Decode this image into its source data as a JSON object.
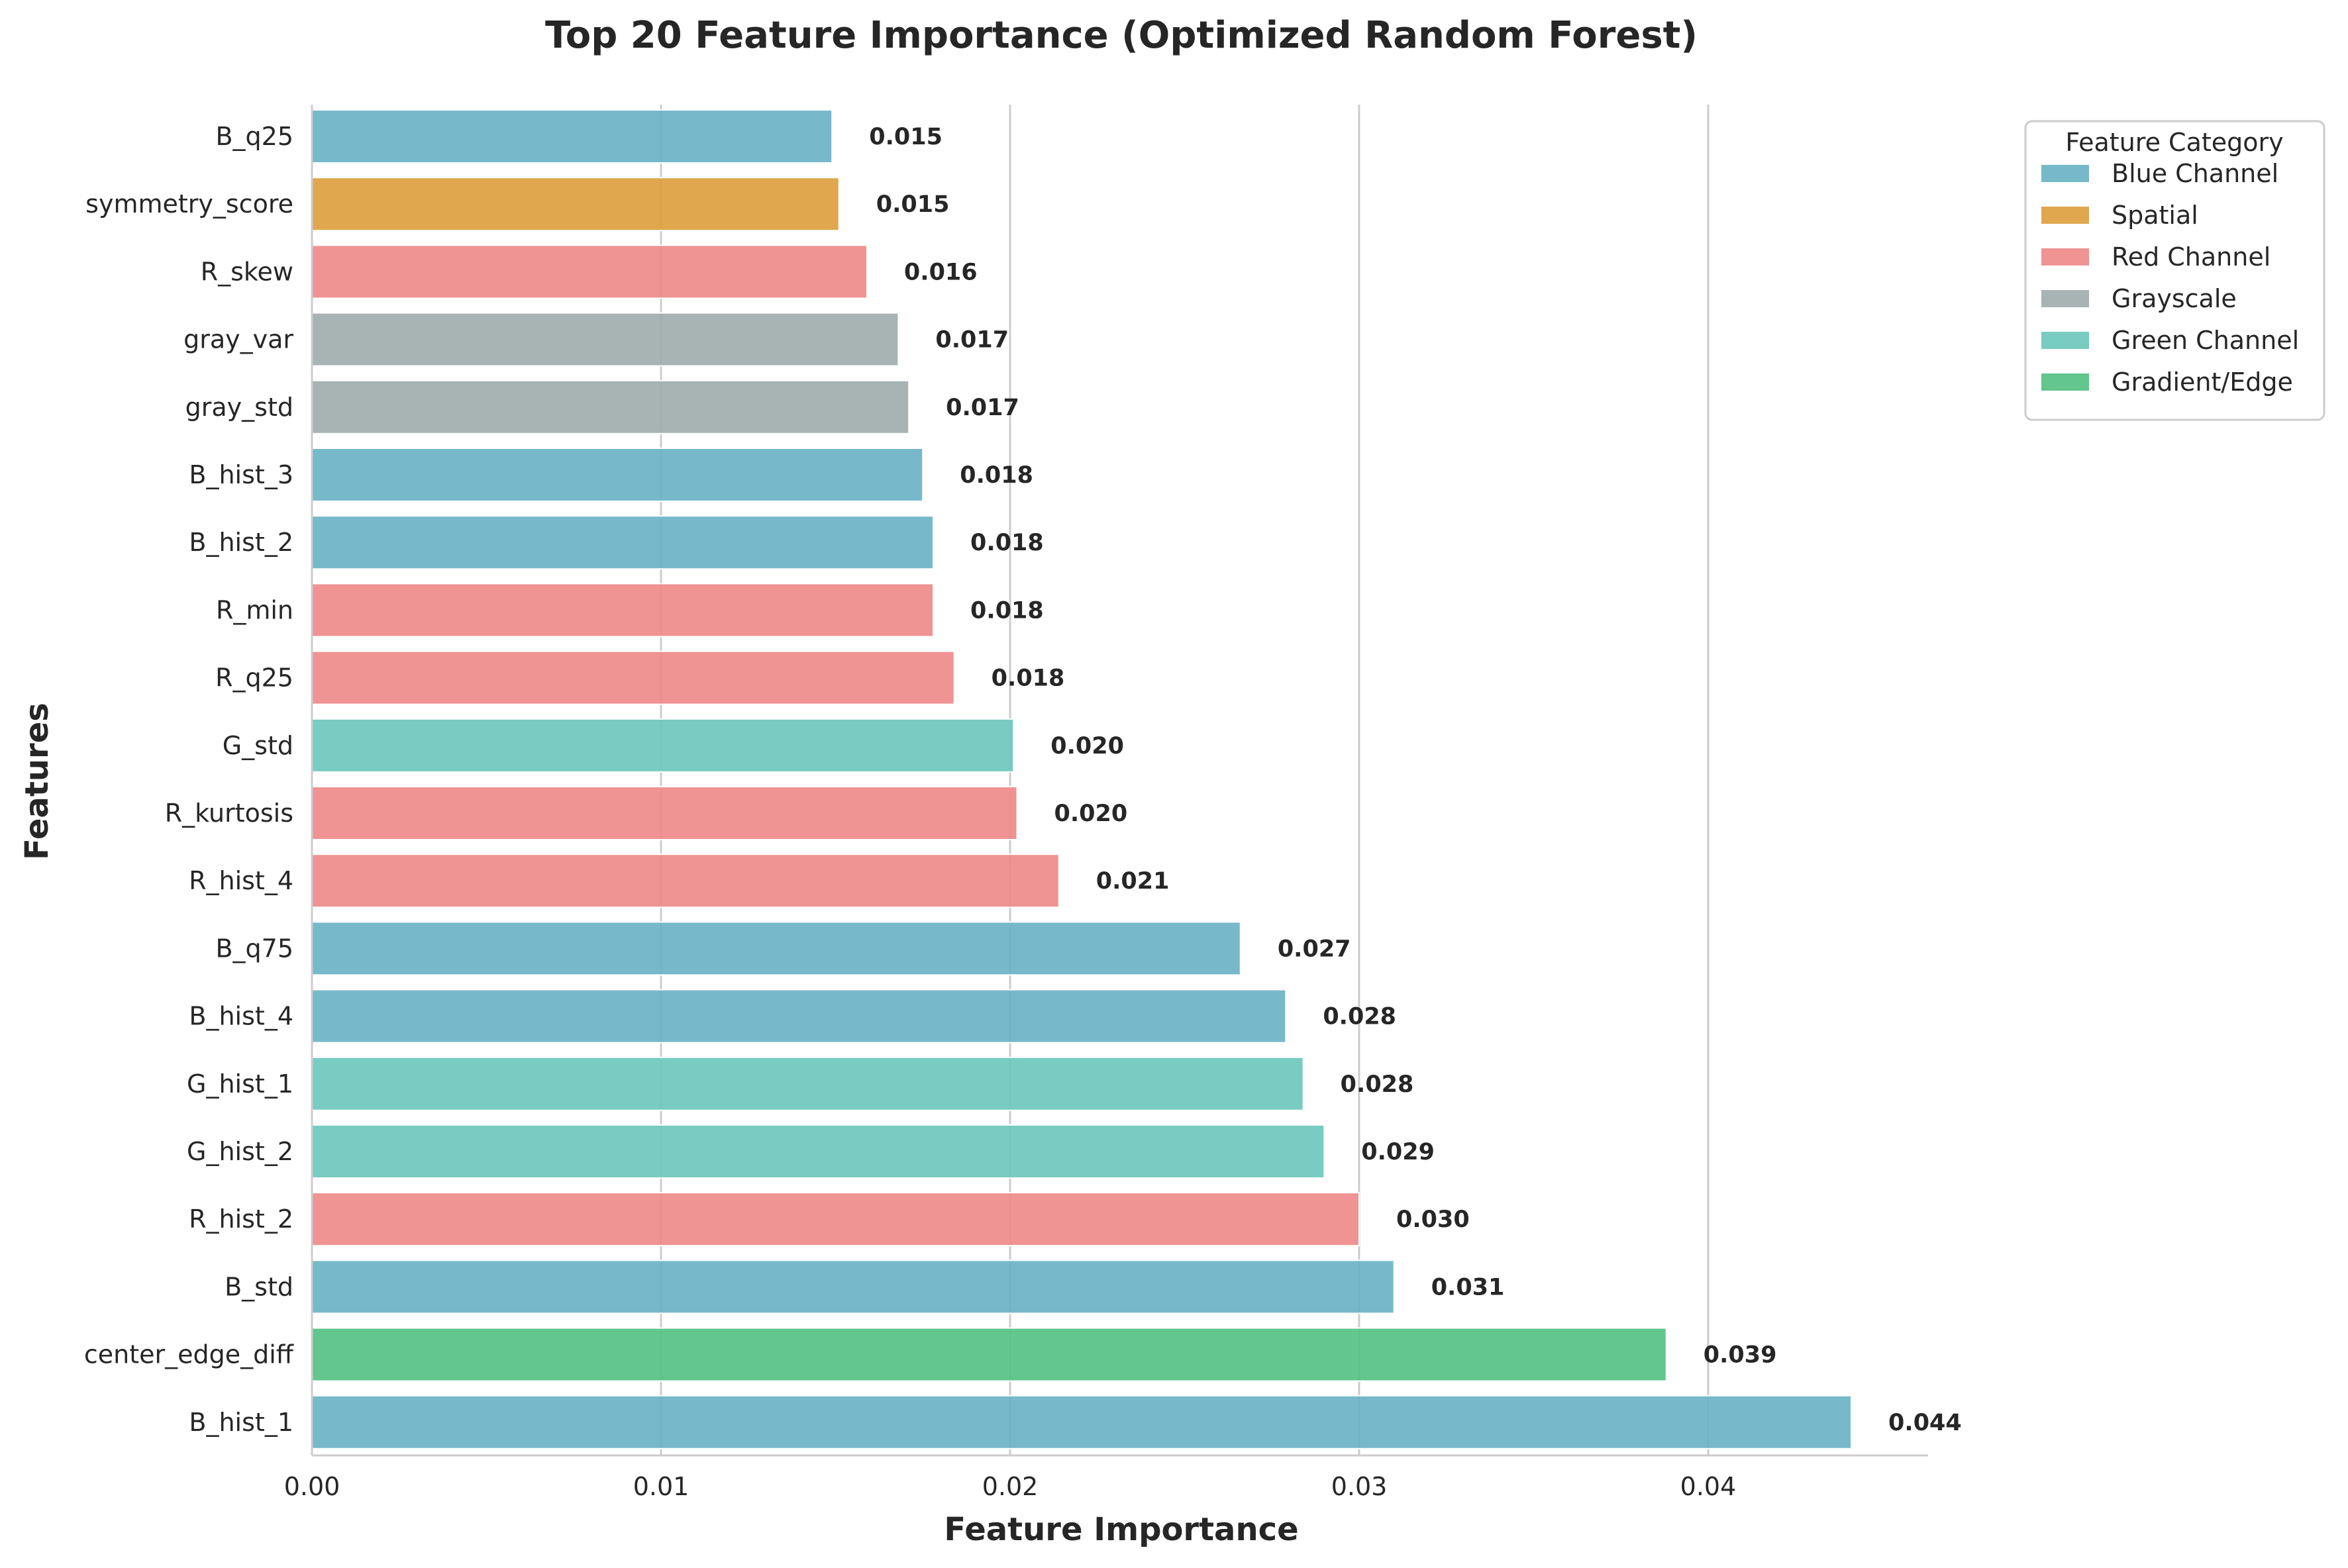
{
  "chart_data": {
    "type": "bar",
    "orientation": "horizontal",
    "title": "Top 20 Feature Importance (Optimized Random Forest)",
    "xlabel": "Feature Importance",
    "ylabel": "Features",
    "xlim": [
      0,
      0.0463
    ],
    "xticks": [
      0.0,
      0.01,
      0.02,
      0.03,
      0.04
    ],
    "xtick_labels": [
      "0.00",
      "0.01",
      "0.02",
      "0.03",
      "0.04"
    ],
    "grid": "vertical",
    "legend": {
      "title": "Feature Category",
      "placement": "top-right outside",
      "entries": [
        {
          "name": "Blue Channel",
          "color": "#6BB3C7"
        },
        {
          "name": "Spatial",
          "color": "#DDA03F"
        },
        {
          "name": "Red Channel",
          "color": "#EE8A8A"
        },
        {
          "name": "Grayscale",
          "color": "#A1ACAC"
        },
        {
          "name": "Green Channel",
          "color": "#6DC8BC"
        },
        {
          "name": "Gradient/Edge",
          "color": "#55C184"
        }
      ]
    },
    "categories": [
      "B_q25",
      "symmetry_score",
      "R_skew",
      "gray_var",
      "gray_std",
      "B_hist_3",
      "B_hist_2",
      "R_min",
      "R_q25",
      "G_std",
      "R_kurtosis",
      "R_hist_4",
      "B_q75",
      "B_hist_4",
      "G_hist_1",
      "G_hist_2",
      "R_hist_2",
      "B_std",
      "center_edge_diff",
      "B_hist_1"
    ],
    "values": [
      0.0149,
      0.0151,
      0.0159,
      0.0168,
      0.0171,
      0.0175,
      0.0178,
      0.0178,
      0.0184,
      0.0201,
      0.0202,
      0.0214,
      0.0266,
      0.0279,
      0.0284,
      0.029,
      0.03,
      0.031,
      0.0388,
      0.0441
    ],
    "value_labels": [
      "0.015",
      "0.015",
      "0.016",
      "0.017",
      "0.017",
      "0.018",
      "0.018",
      "0.018",
      "0.018",
      "0.020",
      "0.020",
      "0.021",
      "0.027",
      "0.028",
      "0.028",
      "0.029",
      "0.030",
      "0.031",
      "0.039",
      "0.044"
    ],
    "groups": [
      "Blue Channel",
      "Spatial",
      "Red Channel",
      "Grayscale",
      "Grayscale",
      "Blue Channel",
      "Blue Channel",
      "Red Channel",
      "Red Channel",
      "Green Channel",
      "Red Channel",
      "Red Channel",
      "Blue Channel",
      "Blue Channel",
      "Green Channel",
      "Green Channel",
      "Red Channel",
      "Blue Channel",
      "Gradient/Edge",
      "Blue Channel"
    ]
  }
}
